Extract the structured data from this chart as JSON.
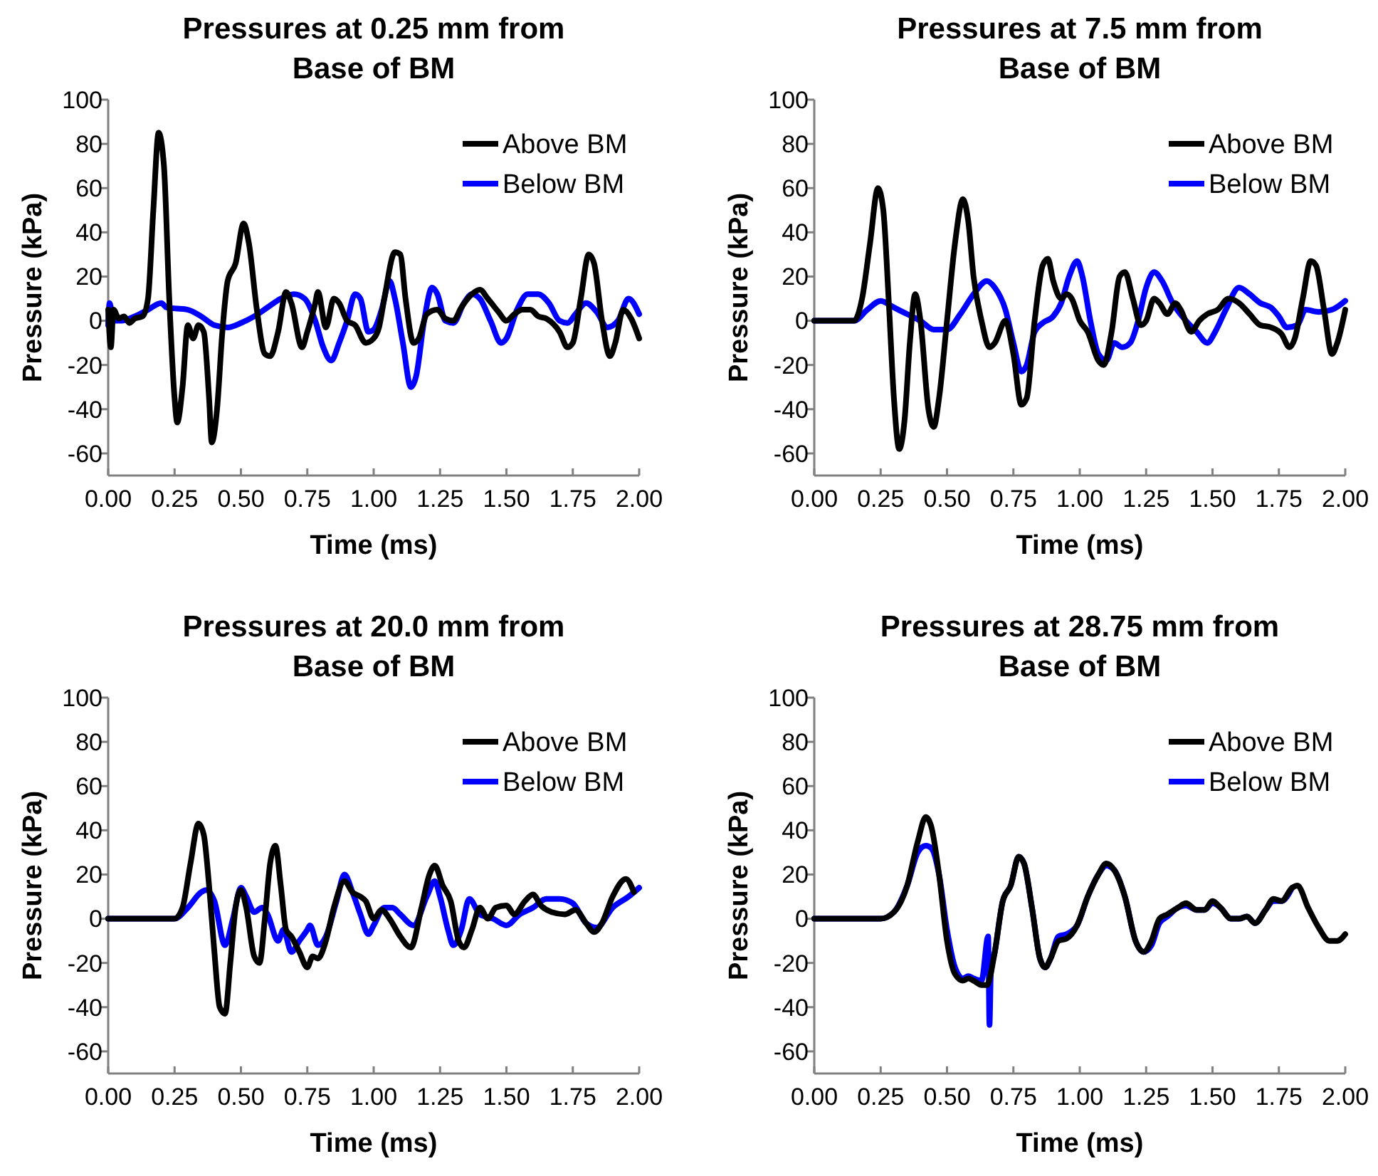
{
  "chart_data": [
    {
      "type": "line",
      "title": "Pressures at 0.25 mm from Base of BM",
      "xlabel": "Time (ms)",
      "ylabel": "Pressure (kPa)",
      "xlim": [
        0,
        2
      ],
      "ylim": [
        -70,
        100
      ],
      "xticks": [
        {
          "value": 0,
          "label": "0.00"
        },
        {
          "value": 0.25,
          "label": "0.25"
        },
        {
          "value": 0.5,
          "label": "0.50"
        },
        {
          "value": 0.75,
          "label": "0.75"
        },
        {
          "value": 1,
          "label": "1.00"
        },
        {
          "value": 1.25,
          "label": "1.25"
        },
        {
          "value": 1.5,
          "label": "1.50"
        },
        {
          "value": 1.75,
          "label": "1.75"
        },
        {
          "value": 2,
          "label": "2.00"
        }
      ],
      "yticks": [
        -60,
        -40,
        -20,
        0,
        20,
        40,
        60,
        80,
        100
      ],
      "legend": "top right",
      "grid": false,
      "line_style": "solid",
      "series": [
        {
          "name": "Below BM",
          "color": "#0000ff",
          "x": [
            0,
            0.005,
            0.02,
            0.05,
            0.1,
            0.15,
            0.2,
            0.22,
            0.3,
            0.35,
            0.4,
            0.45,
            0.5,
            0.55,
            0.6,
            0.65,
            0.7,
            0.74,
            0.78,
            0.81,
            0.84,
            0.87,
            0.9,
            0.93,
            0.95,
            0.98,
            1.0,
            1.03,
            1.06,
            1.08,
            1.11,
            1.14,
            1.16,
            1.19,
            1.22,
            1.24,
            1.27,
            1.3,
            1.34,
            1.37,
            1.4,
            1.44,
            1.48,
            1.5,
            1.54,
            1.58,
            1.62,
            1.66,
            1.7,
            1.73,
            1.76,
            1.8,
            1.84,
            1.88,
            1.92,
            1.96,
            2.0
          ],
          "values": [
            -2,
            8,
            0,
            0,
            2,
            5,
            8,
            6,
            5,
            2,
            -2,
            -3,
            -1,
            2,
            6,
            10,
            12,
            10,
            0,
            -12,
            -18,
            -10,
            0,
            12,
            10,
            -5,
            -4,
            5,
            18,
            10,
            -10,
            -30,
            -25,
            0,
            15,
            12,
            0,
            -1,
            8,
            12,
            10,
            0,
            -10,
            -8,
            5,
            12,
            12,
            8,
            0,
            -1,
            3,
            8,
            4,
            -3,
            0,
            10,
            3
          ]
        },
        {
          "name": "Above BM",
          "color": "#000000",
          "x": [
            0,
            0.01,
            0.02,
            0.04,
            0.06,
            0.08,
            0.1,
            0.13,
            0.15,
            0.17,
            0.19,
            0.21,
            0.23,
            0.25,
            0.26,
            0.28,
            0.3,
            0.32,
            0.34,
            0.36,
            0.38,
            0.39,
            0.41,
            0.43,
            0.45,
            0.48,
            0.51,
            0.53,
            0.56,
            0.59,
            0.61,
            0.64,
            0.67,
            0.69,
            0.73,
            0.75,
            0.78,
            0.79,
            0.82,
            0.85,
            0.87,
            0.9,
            0.93,
            0.97,
            1.0,
            1.02,
            1.04,
            1.08,
            1.1,
            1.12,
            1.15,
            1.17,
            1.2,
            1.24,
            1.27,
            1.3,
            1.33,
            1.37,
            1.4,
            1.43,
            1.47,
            1.5,
            1.53,
            1.56,
            1.59,
            1.62,
            1.65,
            1.7,
            1.73,
            1.75,
            1.78,
            1.81,
            1.83,
            1.86,
            1.89,
            1.91,
            1.94,
            1.97,
            2.0
          ],
          "values": [
            5,
            -12,
            5,
            1,
            2,
            -1,
            1,
            2,
            10,
            50,
            85,
            70,
            10,
            -35,
            -46,
            -30,
            -2,
            -8,
            -2,
            -5,
            -35,
            -55,
            -40,
            -5,
            18,
            26,
            44,
            35,
            5,
            -15,
            -16,
            -5,
            13,
            8,
            -12,
            -5,
            8,
            13,
            -3,
            10,
            8,
            0,
            -2,
            -10,
            -8,
            -3,
            10,
            31,
            30,
            10,
            -10,
            -8,
            3,
            5,
            1,
            0,
            6,
            12,
            14,
            10,
            4,
            0,
            3,
            5,
            5,
            2,
            1,
            -5,
            -12,
            -10,
            10,
            30,
            26,
            0,
            -16,
            -10,
            5,
            1,
            -8
          ]
        }
      ]
    },
    {
      "type": "line",
      "title": "Pressures at 7.5 mm from Base of BM",
      "xlabel": "Time (ms)",
      "ylabel": "Pressure (kPa)",
      "xlim": [
        0,
        2
      ],
      "ylim": [
        -70,
        100
      ],
      "xticks": [
        {
          "value": 0,
          "label": "0.00"
        },
        {
          "value": 0.25,
          "label": "0.25"
        },
        {
          "value": 0.5,
          "label": "0.50"
        },
        {
          "value": 0.75,
          "label": "0.75"
        },
        {
          "value": 1,
          "label": "1.00"
        },
        {
          "value": 1.25,
          "label": "1.25"
        },
        {
          "value": 1.5,
          "label": "1.50"
        },
        {
          "value": 1.75,
          "label": "1.75"
        },
        {
          "value": 2,
          "label": "2.00"
        }
      ],
      "yticks": [
        -60,
        -40,
        -20,
        0,
        20,
        40,
        60,
        80,
        100
      ],
      "legend": "top right",
      "grid": false,
      "line_style": "solid",
      "series": [
        {
          "name": "Below BM",
          "color": "#0000ff",
          "x": [
            0,
            0.15,
            0.2,
            0.25,
            0.3,
            0.35,
            0.4,
            0.45,
            0.5,
            0.55,
            0.6,
            0.65,
            0.68,
            0.72,
            0.75,
            0.78,
            0.8,
            0.83,
            0.86,
            0.9,
            0.93,
            0.96,
            0.99,
            1.01,
            1.04,
            1.07,
            1.1,
            1.13,
            1.16,
            1.19,
            1.22,
            1.25,
            1.28,
            1.31,
            1.35,
            1.4,
            1.44,
            1.48,
            1.51,
            1.55,
            1.6,
            1.64,
            1.68,
            1.72,
            1.75,
            1.78,
            1.82,
            1.85,
            1.9,
            1.95,
            2.0
          ],
          "values": [
            0,
            0,
            5,
            9,
            6,
            3,
            0,
            -4,
            -4,
            3,
            12,
            18,
            15,
            5,
            -10,
            -23,
            -20,
            -5,
            -1,
            2,
            8,
            20,
            27,
            20,
            0,
            -15,
            -18,
            -10,
            -12,
            -10,
            0,
            15,
            22,
            18,
            8,
            0,
            -5,
            -10,
            -5,
            5,
            15,
            12,
            8,
            6,
            2,
            -3,
            -2,
            5,
            4,
            5,
            9
          ]
        },
        {
          "name": "Above BM",
          "color": "#000000",
          "x": [
            0,
            0.15,
            0.18,
            0.21,
            0.24,
            0.26,
            0.28,
            0.3,
            0.32,
            0.34,
            0.36,
            0.38,
            0.4,
            0.43,
            0.45,
            0.47,
            0.5,
            0.53,
            0.56,
            0.58,
            0.6,
            0.63,
            0.66,
            0.68,
            0.72,
            0.75,
            0.78,
            0.8,
            0.83,
            0.86,
            0.88,
            0.9,
            0.93,
            0.95,
            0.97,
            1.0,
            1.03,
            1.07,
            1.09,
            1.12,
            1.15,
            1.17,
            1.2,
            1.23,
            1.25,
            1.28,
            1.3,
            1.33,
            1.36,
            1.38,
            1.42,
            1.45,
            1.48,
            1.52,
            1.56,
            1.6,
            1.64,
            1.68,
            1.72,
            1.76,
            1.79,
            1.81,
            1.84,
            1.87,
            1.89,
            1.92,
            1.95,
            1.97,
            2.0
          ],
          "values": [
            0,
            0,
            10,
            35,
            60,
            50,
            10,
            -35,
            -58,
            -45,
            -10,
            12,
            0,
            -40,
            -48,
            -35,
            0,
            35,
            55,
            45,
            20,
            0,
            -12,
            -10,
            0,
            -15,
            -38,
            -35,
            0,
            25,
            28,
            18,
            10,
            12,
            10,
            0,
            -5,
            -18,
            -20,
            -5,
            20,
            22,
            10,
            -2,
            0,
            10,
            8,
            3,
            8,
            5,
            -5,
            0,
            3,
            5,
            10,
            8,
            3,
            -2,
            -3,
            -6,
            -12,
            -8,
            10,
            27,
            25,
            5,
            -15,
            -10,
            5
          ]
        }
      ]
    },
    {
      "type": "line",
      "title": "Pressures at 20.0 mm from Base of BM",
      "xlabel": "Time (ms)",
      "ylabel": "Pressure (kPa)",
      "xlim": [
        0,
        2
      ],
      "ylim": [
        -70,
        100
      ],
      "xticks": [
        {
          "value": 0,
          "label": "0.00"
        },
        {
          "value": 0.25,
          "label": "0.25"
        },
        {
          "value": 0.5,
          "label": "0.50"
        },
        {
          "value": 0.75,
          "label": "0.75"
        },
        {
          "value": 1,
          "label": "1.00"
        },
        {
          "value": 1.25,
          "label": "1.25"
        },
        {
          "value": 1.5,
          "label": "1.50"
        },
        {
          "value": 1.75,
          "label": "1.75"
        },
        {
          "value": 2,
          "label": "2.00"
        }
      ],
      "yticks": [
        -60,
        -40,
        -20,
        0,
        20,
        40,
        60,
        80,
        100
      ],
      "legend": "top right",
      "grid": false,
      "line_style": "solid",
      "series": [
        {
          "name": "Below BM",
          "color": "#0000ff",
          "x": [
            0,
            0.25,
            0.3,
            0.35,
            0.37,
            0.4,
            0.44,
            0.47,
            0.5,
            0.52,
            0.55,
            0.58,
            0.6,
            0.64,
            0.66,
            0.69,
            0.72,
            0.75,
            0.76,
            0.79,
            0.82,
            0.86,
            0.89,
            0.92,
            0.95,
            0.98,
            1.0,
            1.04,
            1.07,
            1.1,
            1.15,
            1.2,
            1.23,
            1.25,
            1.28,
            1.3,
            1.33,
            1.36,
            1.4,
            1.45,
            1.5,
            1.55,
            1.6,
            1.65,
            1.7,
            1.75,
            1.8,
            1.84,
            1.9,
            1.96,
            2.0
          ],
          "values": [
            0,
            0,
            5,
            12,
            13,
            8,
            -12,
            0,
            14,
            10,
            3,
            5,
            2,
            -10,
            -5,
            -15,
            -10,
            -5,
            -3,
            -12,
            -8,
            8,
            20,
            12,
            2,
            -7,
            -3,
            5,
            5,
            2,
            -3,
            10,
            17,
            10,
            -5,
            -12,
            -5,
            9,
            2,
            0,
            -3,
            2,
            5,
            9,
            9,
            7,
            -2,
            -4,
            5,
            10,
            14
          ]
        },
        {
          "name": "Above BM",
          "color": "#000000",
          "x": [
            0,
            0.25,
            0.28,
            0.31,
            0.34,
            0.36,
            0.38,
            0.4,
            0.42,
            0.44,
            0.46,
            0.48,
            0.5,
            0.52,
            0.55,
            0.57,
            0.59,
            0.61,
            0.63,
            0.65,
            0.67,
            0.69,
            0.72,
            0.75,
            0.77,
            0.79,
            0.82,
            0.85,
            0.89,
            0.92,
            0.95,
            0.97,
            1.0,
            1.03,
            1.06,
            1.1,
            1.14,
            1.18,
            1.21,
            1.23,
            1.26,
            1.29,
            1.32,
            1.34,
            1.37,
            1.4,
            1.43,
            1.46,
            1.5,
            1.53,
            1.57,
            1.6,
            1.63,
            1.67,
            1.72,
            1.76,
            1.8,
            1.83,
            1.86,
            1.9,
            1.95,
            1.98
          ],
          "values": [
            0,
            0,
            5,
            25,
            43,
            38,
            15,
            -15,
            -40,
            -43,
            -20,
            5,
            13,
            5,
            -17,
            -20,
            0,
            25,
            33,
            15,
            -5,
            -8,
            -15,
            -22,
            -17,
            -18,
            -10,
            5,
            17,
            12,
            10,
            8,
            0,
            4,
            0,
            -8,
            -13,
            5,
            20,
            24,
            15,
            8,
            -10,
            -13,
            -5,
            5,
            0,
            5,
            6,
            2,
            8,
            11,
            6,
            3,
            2,
            4,
            -2,
            -6,
            -2,
            10,
            18,
            12
          ]
        }
      ]
    },
    {
      "type": "line",
      "title": "Pressures at 28.75 mm from Base of BM",
      "xlabel": "Time (ms)",
      "ylabel": "Pressure (kPa)",
      "xlim": [
        0,
        2
      ],
      "ylim": [
        -70,
        100
      ],
      "xticks": [
        {
          "value": 0,
          "label": "0.00"
        },
        {
          "value": 0.25,
          "label": "0.25"
        },
        {
          "value": 0.5,
          "label": "0.50"
        },
        {
          "value": 0.75,
          "label": "0.75"
        },
        {
          "value": 1,
          "label": "1.00"
        },
        {
          "value": 1.25,
          "label": "1.25"
        },
        {
          "value": 1.5,
          "label": "1.50"
        },
        {
          "value": 1.75,
          "label": "1.75"
        },
        {
          "value": 2,
          "label": "2.00"
        }
      ],
      "yticks": [
        -60,
        -40,
        -20,
        0,
        20,
        40,
        60,
        80,
        100
      ],
      "legend": "top right",
      "grid": false,
      "line_style": "solid",
      "series": [
        {
          "name": "Below BM",
          "color": "#0000ff",
          "x": [
            0,
            0.25,
            0.3,
            0.35,
            0.39,
            0.42,
            0.44,
            0.47,
            0.5,
            0.53,
            0.56,
            0.58,
            0.6,
            0.63,
            0.655,
            0.66,
            0.665,
            0.68,
            0.71,
            0.74,
            0.77,
            0.79,
            0.82,
            0.85,
            0.87,
            0.89,
            0.92,
            0.95,
            0.99,
            1.03,
            1.07,
            1.1,
            1.13,
            1.17,
            1.21,
            1.24,
            1.27,
            1.3,
            1.33,
            1.37,
            1.4,
            1.44,
            1.47,
            1.5,
            1.53,
            1.57,
            1.6,
            1.63,
            1.66,
            1.7,
            1.73,
            1.76,
            1.8
          ],
          "values": [
            0,
            0,
            3,
            15,
            30,
            33,
            32,
            20,
            -5,
            -22,
            -27,
            -26,
            -27,
            -28,
            -8,
            -48,
            -25,
            -15,
            8,
            15,
            28,
            25,
            5,
            -18,
            -22,
            -18,
            -8,
            -7,
            -3,
            10,
            20,
            24,
            22,
            10,
            -10,
            -15,
            -12,
            -2,
            1,
            5,
            6,
            4,
            4,
            7,
            5,
            0,
            0,
            1,
            -2,
            4,
            8,
            8,
            14
          ]
        },
        {
          "name": "Above BM",
          "color": "#000000",
          "x": [
            0,
            0.25,
            0.3,
            0.35,
            0.39,
            0.42,
            0.44,
            0.47,
            0.5,
            0.53,
            0.56,
            0.58,
            0.6,
            0.63,
            0.65,
            0.68,
            0.71,
            0.74,
            0.77,
            0.79,
            0.82,
            0.85,
            0.87,
            0.89,
            0.92,
            0.95,
            0.99,
            1.03,
            1.07,
            1.1,
            1.13,
            1.17,
            1.21,
            1.24,
            1.27,
            1.3,
            1.33,
            1.37,
            1.4,
            1.44,
            1.47,
            1.5,
            1.53,
            1.57,
            1.6,
            1.63,
            1.66,
            1.7,
            1.73,
            1.76,
            1.8,
            1.82,
            1.86,
            1.9,
            1.94,
            1.97,
            2.0
          ],
          "values": [
            0,
            0,
            3,
            15,
            35,
            46,
            42,
            20,
            -10,
            -25,
            -28,
            -27,
            -28,
            -30,
            -30,
            -15,
            8,
            15,
            28,
            25,
            5,
            -18,
            -22,
            -18,
            -10,
            -9,
            -3,
            10,
            20,
            25,
            22,
            10,
            -10,
            -15,
            -10,
            0,
            2,
            5,
            7,
            4,
            4,
            8,
            5,
            0,
            0,
            1,
            -2,
            4,
            9,
            8,
            14,
            15,
            5,
            -4,
            -10,
            -10,
            -7
          ]
        }
      ]
    }
  ]
}
